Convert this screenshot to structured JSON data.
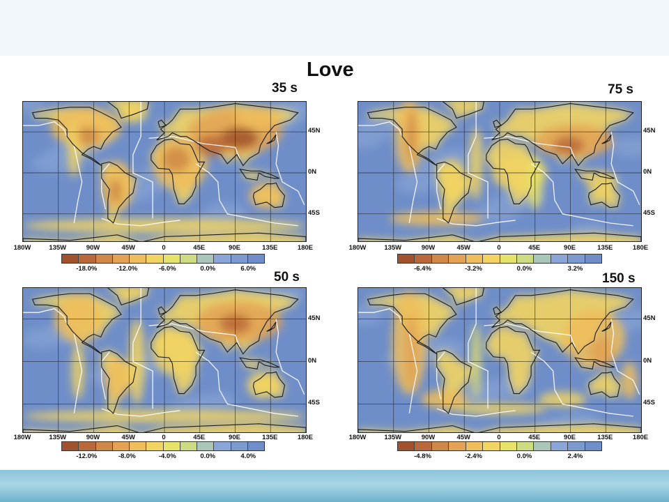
{
  "title": "Love",
  "lon_ticks": [
    "180W",
    "135W",
    "90W",
    "45W",
    "0",
    "45E",
    "90E",
    "135E",
    "180E"
  ],
  "lat_ticks": [
    "45N",
    "0N",
    "45S"
  ],
  "palette": [
    "#a0522d",
    "#b8683a",
    "#cf8848",
    "#e3a254",
    "#efbd5c",
    "#f2d462",
    "#e6e26a",
    "#cddc82",
    "#a9c6b9",
    "#8ba6d6",
    "#7d9ad0",
    "#6f8ec9"
  ],
  "ocean_color": "#6f8ec9",
  "panels": [
    {
      "id": "p35",
      "label": "35 s",
      "colorbar_labels": [
        "-18.0%",
        "-12.0%",
        "-6.0%",
        "0.0%",
        "6.0%"
      ],
      "colorbar_segments": 12
    },
    {
      "id": "p75",
      "label": "75 s",
      "colorbar_labels": [
        "-6.4%",
        "-3.2%",
        "0.0%",
        "3.2%"
      ],
      "colorbar_segments": 12
    },
    {
      "id": "p50",
      "label": "50 s",
      "colorbar_labels": [
        "-12.0%",
        "-8.0%",
        "-4.0%",
        "0.0%",
        "4.0%"
      ],
      "colorbar_segments": 12
    },
    {
      "id": "p150",
      "label": "150 s",
      "colorbar_labels": [
        "-4.8%",
        "-2.4%",
        "0.0%",
        "2.4%"
      ],
      "colorbar_segments": 12
    }
  ]
}
